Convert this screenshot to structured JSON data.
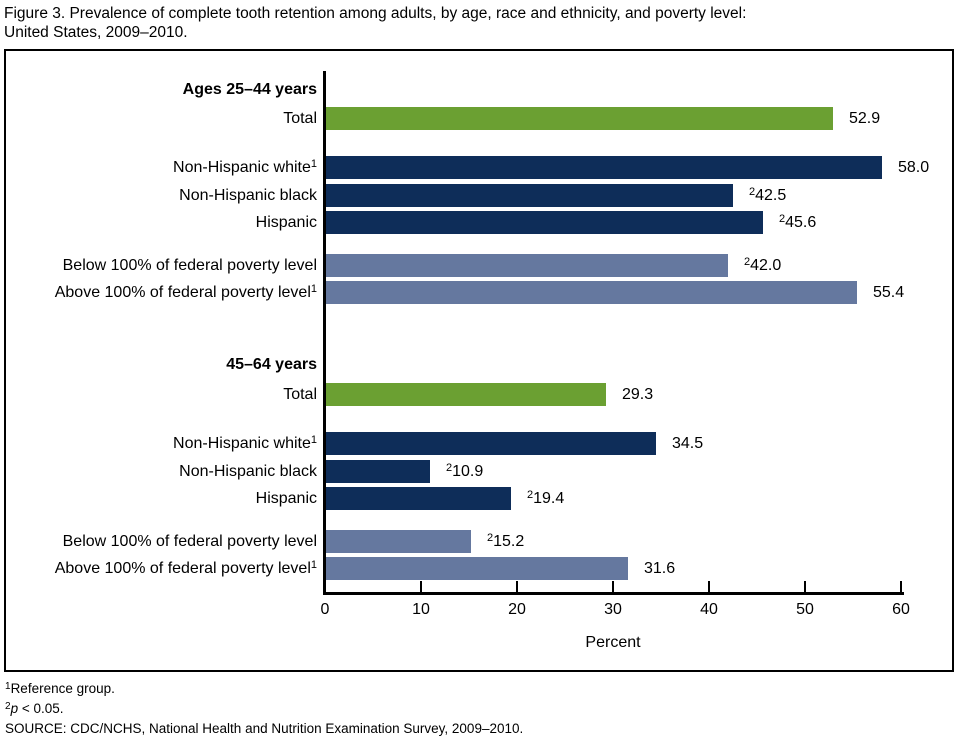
{
  "figure_title": {
    "line1": "Figure 3. Prevalence of complete tooth retention among adults, by age, race and ethnicity, and poverty level:",
    "line2": "United States, 2009–2010."
  },
  "chart_data": {
    "type": "bar",
    "orientation": "horizontal",
    "title": "Prevalence of complete tooth retention among adults, by age, race and ethnicity, and poverty level: United States, 2009–2010",
    "xlabel": "Percent",
    "xlim": [
      0,
      60
    ],
    "xticks": [
      0,
      10,
      20,
      30,
      40,
      50,
      60
    ],
    "grid": false,
    "colors": {
      "total": "#6BA032",
      "race": "#0E2D59",
      "poverty": "#65789F"
    },
    "groups": [
      {
        "heading": "Ages 25–44 years",
        "bars": [
          {
            "label": "Total",
            "label_sup": "",
            "series": "total",
            "value": 52.9,
            "display": "52.9",
            "value_sup": ""
          },
          {
            "label": "Non-Hispanic white",
            "label_sup": "1",
            "series": "race",
            "value": 58.0,
            "display": "58.0",
            "value_sup": ""
          },
          {
            "label": "Non-Hispanic black",
            "label_sup": "",
            "series": "race",
            "value": 42.5,
            "display": "42.5",
            "value_sup": "2"
          },
          {
            "label": "Hispanic",
            "label_sup": "",
            "series": "race",
            "value": 45.6,
            "display": "45.6",
            "value_sup": "2"
          },
          {
            "label": "Below 100% of federal poverty level",
            "label_sup": "",
            "series": "poverty",
            "value": 42.0,
            "display": "42.0",
            "value_sup": "2"
          },
          {
            "label": "Above 100% of federal poverty level",
            "label_sup": "1",
            "series": "poverty",
            "value": 55.4,
            "display": "55.4",
            "value_sup": ""
          }
        ]
      },
      {
        "heading": "45–64 years",
        "bars": [
          {
            "label": "Total",
            "label_sup": "",
            "series": "total",
            "value": 29.3,
            "display": "29.3",
            "value_sup": ""
          },
          {
            "label": "Non-Hispanic white",
            "label_sup": "1",
            "series": "race",
            "value": 34.5,
            "display": "34.5",
            "value_sup": ""
          },
          {
            "label": "Non-Hispanic black",
            "label_sup": "",
            "series": "race",
            "value": 10.9,
            "display": "10.9",
            "value_sup": "2"
          },
          {
            "label": "Hispanic",
            "label_sup": "",
            "series": "race",
            "value": 19.4,
            "display": "19.4",
            "value_sup": "2"
          },
          {
            "label": "Below 100% of federal poverty level",
            "label_sup": "",
            "series": "poverty",
            "value": 15.2,
            "display": "15.2",
            "value_sup": "2"
          },
          {
            "label": "Above 100% of federal poverty level",
            "label_sup": "1",
            "series": "poverty",
            "value": 31.6,
            "display": "31.6",
            "value_sup": ""
          }
        ]
      }
    ]
  },
  "footnotes": [
    {
      "sup": "1",
      "italic": "",
      "text": "Reference group."
    },
    {
      "sup": "2",
      "italic": "p",
      "text": " < 0.05."
    },
    {
      "sup": "",
      "italic": "",
      "text": "SOURCE: CDC/NCHS, National Health and Nutrition Examination Survey, 2009–2010."
    }
  ]
}
